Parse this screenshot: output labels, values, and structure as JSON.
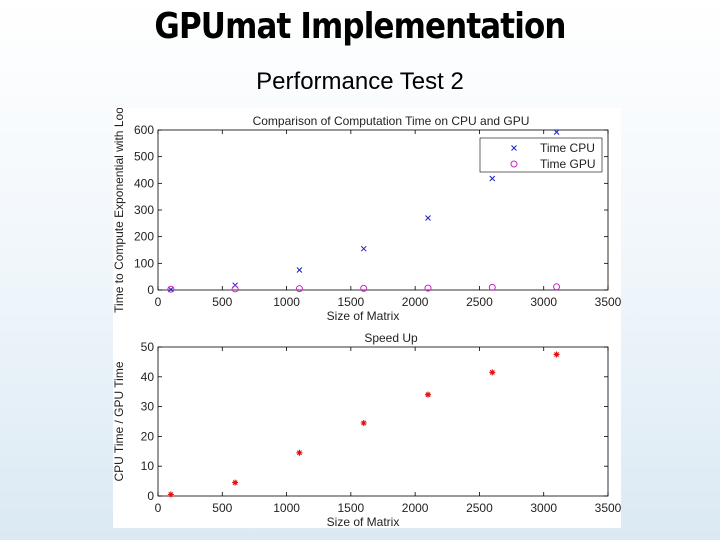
{
  "slide": {
    "title": "GPUmat Implementation",
    "subtitle": "Performance Test 2"
  },
  "chart_data": [
    {
      "type": "scatter",
      "title": "Comparison of Computation Time on CPU and GPU",
      "xlabel": "Size of Matrix",
      "ylabel": "Time to Compute Exponential with Loo",
      "xlim": [
        0,
        3500
      ],
      "ylim": [
        0,
        600
      ],
      "xticks": [
        0,
        500,
        1000,
        1500,
        2000,
        2500,
        3000,
        3500
      ],
      "yticks": [
        0,
        100,
        200,
        300,
        400,
        500,
        600
      ],
      "grid": false,
      "legend_position": "top-right",
      "series": [
        {
          "name": "Time CPU",
          "marker": "x",
          "color": "#1f1fc8",
          "x": [
            100,
            600,
            1100,
            1600,
            2100,
            2600,
            3100
          ],
          "y": [
            2,
            18,
            75,
            155,
            270,
            418,
            592
          ]
        },
        {
          "name": "Time GPU",
          "marker": "o",
          "color": "#d020d0",
          "x": [
            100,
            600,
            1100,
            1600,
            2100,
            2600,
            3100
          ],
          "y": [
            3,
            4,
            5,
            6,
            7,
            10,
            12
          ]
        }
      ]
    },
    {
      "type": "scatter",
      "title": "Speed Up",
      "xlabel": "Size of Matrix",
      "ylabel": "CPU Time / GPU Time",
      "xlim": [
        0,
        3500
      ],
      "ylim": [
        0,
        50
      ],
      "xticks": [
        0,
        500,
        1000,
        1500,
        2000,
        2500,
        3000,
        3500
      ],
      "yticks": [
        0,
        10,
        20,
        30,
        40,
        50
      ],
      "grid": false,
      "series": [
        {
          "marker": "*",
          "color": "#e01010",
          "x": [
            100,
            600,
            1100,
            1600,
            2100,
            2600,
            3100
          ],
          "y": [
            0.5,
            4.5,
            14.5,
            24.5,
            34,
            41.5,
            47.5
          ]
        }
      ]
    }
  ]
}
